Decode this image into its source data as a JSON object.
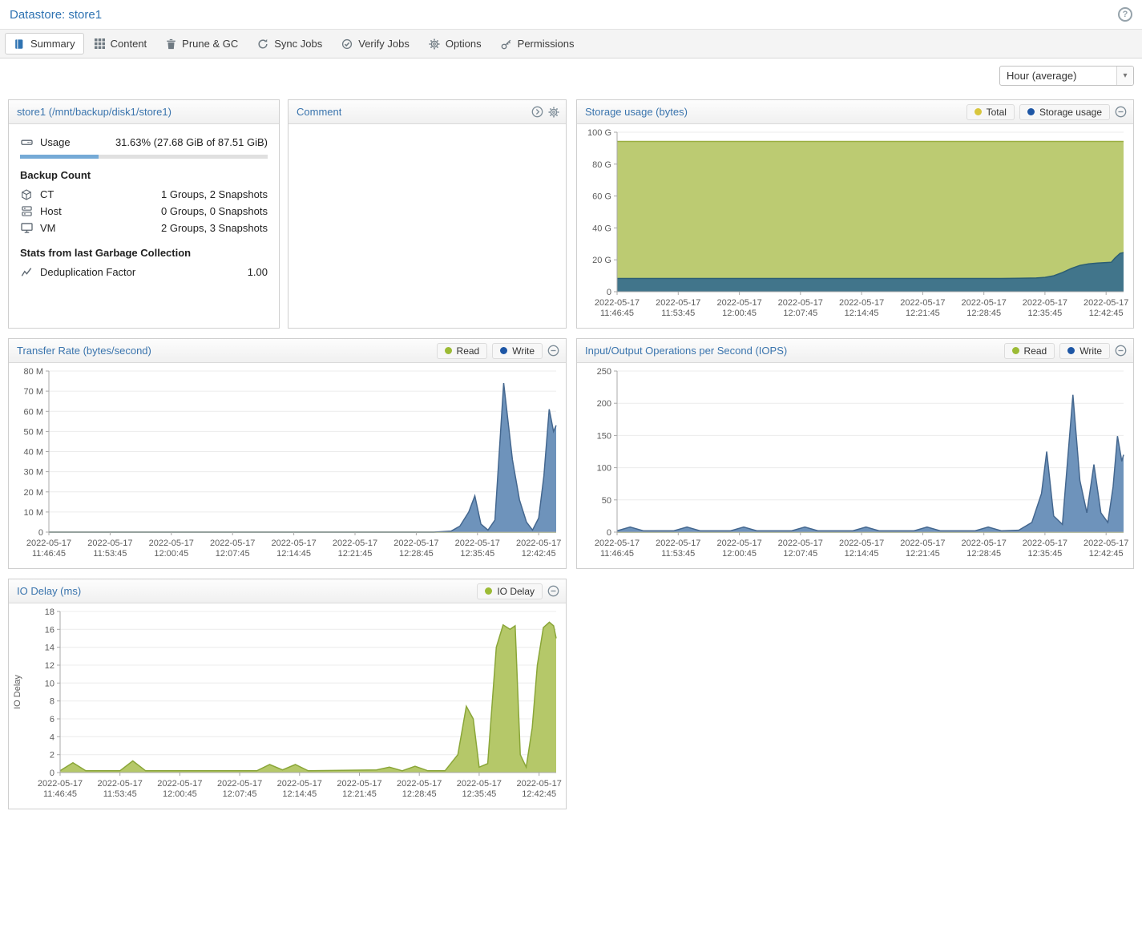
{
  "header": {
    "title": "Datastore: store1",
    "help_icon": "?"
  },
  "tabs": [
    {
      "label": "Summary",
      "icon": "book",
      "active": true
    },
    {
      "label": "Content",
      "icon": "grid",
      "active": false
    },
    {
      "label": "Prune & GC",
      "icon": "trash",
      "active": false
    },
    {
      "label": "Sync Jobs",
      "icon": "sync",
      "active": false
    },
    {
      "label": "Verify Jobs",
      "icon": "check",
      "active": false
    },
    {
      "label": "Options",
      "icon": "gear",
      "active": false
    },
    {
      "label": "Permissions",
      "icon": "key",
      "active": false
    }
  ],
  "toolbar": {
    "timeframe": "Hour (average)"
  },
  "datastore_panel": {
    "title": "store1 (/mnt/backup/disk1/store1)",
    "usage": {
      "icon": "hdd",
      "label": "Usage",
      "value": "31.63% (27.68 GiB of 87.51 GiB)",
      "percent": 31.63
    },
    "backup_count": {
      "heading": "Backup Count",
      "rows": [
        {
          "icon": "cube",
          "label": "CT",
          "value": "1 Groups, 2 Snapshots"
        },
        {
          "icon": "server",
          "label": "Host",
          "value": "0 Groups, 0 Snapshots"
        },
        {
          "icon": "desktop",
          "label": "VM",
          "value": "2 Groups, 3 Snapshots"
        }
      ]
    },
    "gc_stats": {
      "heading": "Stats from last Garbage Collection",
      "rows": [
        {
          "icon": "chart",
          "label": "Deduplication Factor",
          "value": "1.00"
        }
      ]
    }
  },
  "comment_panel": {
    "title": "Comment",
    "content": ""
  },
  "accent_colors": {
    "link_blue": "#2f73b2",
    "progress_fill": "#75aad6"
  },
  "chart_data": [
    {
      "type": "area",
      "title": "Storage usage (bytes)",
      "legend": [
        {
          "name": "Total",
          "color": "#d8c63c"
        },
        {
          "name": "Storage usage",
          "color": "#1d56a5"
        }
      ],
      "x_date": "2022-05-17",
      "x_times": [
        "11:46:45",
        "11:53:45",
        "12:00:45",
        "12:07:45",
        "12:14:45",
        "12:21:45",
        "12:28:45",
        "12:35:45",
        "12:42:45"
      ],
      "x_tick_step_minutes": 7,
      "xlim_minutes": [
        0,
        58
      ],
      "ylim": [
        0,
        100
      ],
      "ytick_values": [
        0,
        20,
        40,
        60,
        80,
        100
      ],
      "ytick_labels": [
        "0",
        "20 G",
        "40 G",
        "60 G",
        "80 G",
        "100 G"
      ],
      "ylabel": "",
      "grid": true,
      "legend_position": "header-right",
      "series": [
        {
          "name": "Total",
          "fill": "#bccb72",
          "stroke": "#9aaf41",
          "points": [
            [
              0,
              94.2
            ],
            [
              58,
              94.2
            ]
          ]
        },
        {
          "name": "Storage usage",
          "fill": "#41758b",
          "stroke": "#2c5e74",
          "points": [
            [
              0,
              8.3
            ],
            [
              44,
              8.3
            ],
            [
              46,
              8.4
            ],
            [
              48,
              8.6
            ],
            [
              49,
              9
            ],
            [
              50,
              10
            ],
            [
              51,
              12
            ],
            [
              52,
              14.5
            ],
            [
              53,
              16.5
            ],
            [
              54,
              17.5
            ],
            [
              55,
              18
            ],
            [
              56,
              18.3
            ],
            [
              56.6,
              18.5
            ],
            [
              57,
              21
            ],
            [
              57.6,
              24
            ],
            [
              58,
              24.5
            ]
          ]
        }
      ]
    },
    {
      "type": "area",
      "title": "Transfer Rate (bytes/second)",
      "legend": [
        {
          "name": "Read",
          "color": "#9cbb35"
        },
        {
          "name": "Write",
          "color": "#1d56a5"
        }
      ],
      "x_date": "2022-05-17",
      "x_times": [
        "11:46:45",
        "11:53:45",
        "12:00:45",
        "12:07:45",
        "12:14:45",
        "12:21:45",
        "12:28:45",
        "12:35:45",
        "12:42:45"
      ],
      "x_tick_step_minutes": 7,
      "xlim_minutes": [
        0,
        58
      ],
      "ylim": [
        0,
        80
      ],
      "ytick_values": [
        0,
        10,
        20,
        30,
        40,
        50,
        60,
        70,
        80
      ],
      "ytick_labels": [
        "0",
        "10 M",
        "20 M",
        "30 M",
        "40 M",
        "50 M",
        "60 M",
        "70 M",
        "80 M"
      ],
      "ylabel": "",
      "grid": true,
      "legend_position": "header-right",
      "series": [
        {
          "name": "Read",
          "fill": "#b5c869",
          "stroke": "#8aa638",
          "points": [
            [
              0,
              0
            ],
            [
              58,
              0
            ]
          ]
        },
        {
          "name": "Write",
          "fill": "#6e93bb",
          "stroke": "#44678f",
          "points": [
            [
              0,
              0
            ],
            [
              44,
              0
            ],
            [
              46,
              0.5
            ],
            [
              47,
              3
            ],
            [
              48,
              10
            ],
            [
              48.7,
              18
            ],
            [
              49.4,
              4
            ],
            [
              50.2,
              1
            ],
            [
              51,
              6
            ],
            [
              52,
              74
            ],
            [
              53,
              36
            ],
            [
              53.8,
              16
            ],
            [
              54.6,
              5
            ],
            [
              55.3,
              1
            ],
            [
              56,
              7
            ],
            [
              56.6,
              28
            ],
            [
              57.2,
              61
            ],
            [
              57.7,
              50
            ],
            [
              58,
              53
            ]
          ]
        }
      ]
    },
    {
      "type": "area",
      "title": "Input/Output Operations per Second (IOPS)",
      "legend": [
        {
          "name": "Read",
          "color": "#9cbb35"
        },
        {
          "name": "Write",
          "color": "#1d56a5"
        }
      ],
      "x_date": "2022-05-17",
      "x_times": [
        "11:46:45",
        "11:53:45",
        "12:00:45",
        "12:07:45",
        "12:14:45",
        "12:21:45",
        "12:28:45",
        "12:35:45",
        "12:42:45"
      ],
      "x_tick_step_minutes": 7,
      "xlim_minutes": [
        0,
        58
      ],
      "ylim": [
        0,
        250
      ],
      "ytick_values": [
        0,
        50,
        100,
        150,
        200,
        250
      ],
      "ytick_labels": [
        "0",
        "50",
        "100",
        "150",
        "200",
        "250"
      ],
      "ylabel": "",
      "grid": true,
      "legend_position": "header-right",
      "series": [
        {
          "name": "Read",
          "fill": "#b5c869",
          "stroke": "#8aa638",
          "points": [
            [
              0,
              0
            ],
            [
              58,
              0
            ]
          ]
        },
        {
          "name": "Write",
          "fill": "#6e93bb",
          "stroke": "#44678f",
          "points": [
            [
              0,
              2
            ],
            [
              1.5,
              8
            ],
            [
              3,
              2
            ],
            [
              6.5,
              2
            ],
            [
              8,
              8
            ],
            [
              9.5,
              2
            ],
            [
              13,
              2
            ],
            [
              14.5,
              8
            ],
            [
              16,
              2
            ],
            [
              20,
              2
            ],
            [
              21.5,
              8
            ],
            [
              23,
              2
            ],
            [
              27,
              2
            ],
            [
              28.5,
              8
            ],
            [
              30,
              2
            ],
            [
              34,
              2
            ],
            [
              35.5,
              8
            ],
            [
              37,
              2
            ],
            [
              41,
              2
            ],
            [
              42.5,
              8
            ],
            [
              44,
              2
            ],
            [
              46,
              3
            ],
            [
              47.5,
              15
            ],
            [
              48.6,
              60
            ],
            [
              49.2,
              125
            ],
            [
              50,
              25
            ],
            [
              51,
              12
            ],
            [
              52.2,
              213
            ],
            [
              53,
              80
            ],
            [
              53.8,
              30
            ],
            [
              54.6,
              105
            ],
            [
              55.4,
              30
            ],
            [
              56.2,
              15
            ],
            [
              56.8,
              70
            ],
            [
              57.3,
              149
            ],
            [
              57.8,
              110
            ],
            [
              58,
              120
            ]
          ]
        }
      ]
    },
    {
      "type": "area",
      "title": "IO Delay (ms)",
      "legend": [
        {
          "name": "IO Delay",
          "color": "#9cbb35"
        }
      ],
      "x_date": "2022-05-17",
      "x_times": [
        "11:46:45",
        "11:53:45",
        "12:00:45",
        "12:07:45",
        "12:14:45",
        "12:21:45",
        "12:28:45",
        "12:35:45",
        "12:42:45"
      ],
      "x_tick_step_minutes": 7,
      "xlim_minutes": [
        0,
        58
      ],
      "ylim": [
        0,
        18
      ],
      "ytick_values": [
        0,
        2,
        4,
        6,
        8,
        10,
        12,
        14,
        16,
        18
      ],
      "ytick_labels": [
        "0",
        "2",
        "4",
        "6",
        "8",
        "10",
        "12",
        "14",
        "16",
        "18"
      ],
      "ylabel": "IO Delay",
      "grid": true,
      "legend_position": "header-right",
      "series": [
        {
          "name": "IO Delay",
          "fill": "#b5c869",
          "stroke": "#8aa638",
          "points": [
            [
              0,
              0.2
            ],
            [
              1.5,
              1.1
            ],
            [
              3,
              0.2
            ],
            [
              7,
              0.2
            ],
            [
              8.5,
              1.3
            ],
            [
              10,
              0.2
            ],
            [
              23,
              0.2
            ],
            [
              24.5,
              0.9
            ],
            [
              26,
              0.3
            ],
            [
              27.5,
              0.9
            ],
            [
              29,
              0.2
            ],
            [
              37,
              0.3
            ],
            [
              38.5,
              0.6
            ],
            [
              40,
              0.2
            ],
            [
              41.5,
              0.7
            ],
            [
              43,
              0.2
            ],
            [
              45,
              0.2
            ],
            [
              46.5,
              2
            ],
            [
              47.5,
              7.4
            ],
            [
              48.3,
              6
            ],
            [
              49,
              0.6
            ],
            [
              50,
              1
            ],
            [
              51,
              14
            ],
            [
              51.8,
              16.5
            ],
            [
              52.6,
              16
            ],
            [
              53.2,
              16.4
            ],
            [
              53.8,
              2
            ],
            [
              54.5,
              0.6
            ],
            [
              55.2,
              5
            ],
            [
              55.8,
              12
            ],
            [
              56.5,
              16.2
            ],
            [
              57.2,
              16.8
            ],
            [
              57.7,
              16.4
            ],
            [
              58,
              15
            ]
          ]
        }
      ]
    }
  ]
}
